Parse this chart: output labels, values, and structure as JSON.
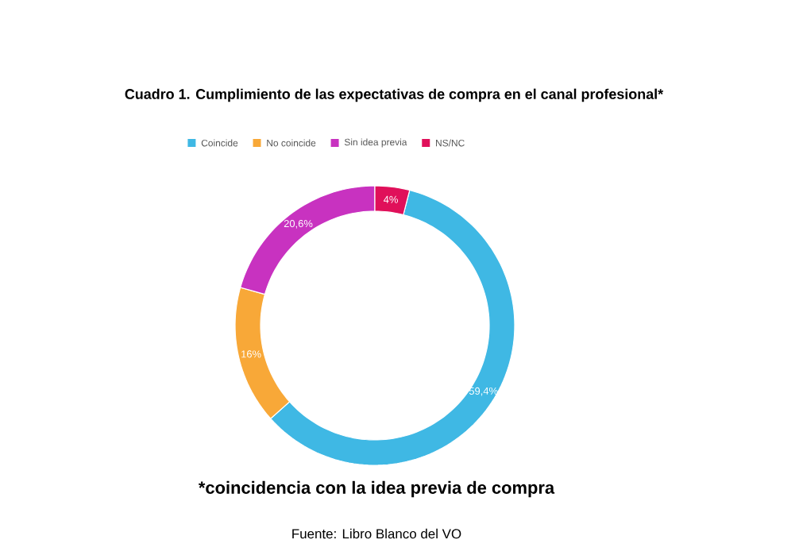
{
  "chart_data": {
    "type": "donut",
    "title": "Cuadro 1. Cumplimiento de las expectativas de compra en el canal profesional*",
    "categories": [
      "Coincide",
      "No coincide",
      "Sin idea previa",
      "NS/NC"
    ],
    "values": [
      59.4,
      16,
      20.6,
      4
    ],
    "colors": [
      "#3fb8e4",
      "#f8a838",
      "#c832c0",
      "#e0105a"
    ],
    "value_labels": [
      "59,4%",
      "16%",
      "20,6%",
      "4%"
    ],
    "legend": "top",
    "annotations": [
      "*coincidencia con la idea previa de compra",
      "Fuente: Libro Blanco del VO"
    ]
  }
}
